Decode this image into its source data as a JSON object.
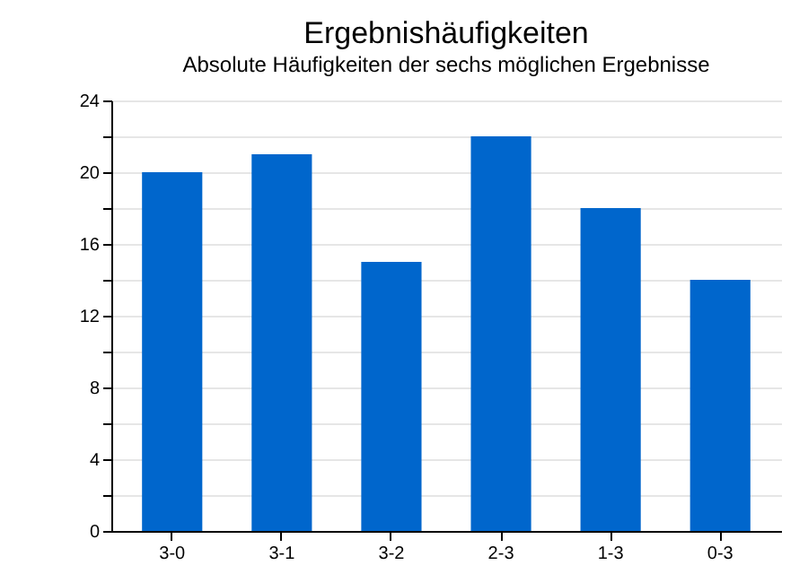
{
  "chart_data": {
    "type": "bar",
    "title": "Ergebnishäufigkeiten",
    "subtitle": "Absolute Häufigkeiten der sechs möglichen Ergebnisse",
    "categories": [
      "3-0",
      "3-1",
      "3-2",
      "2-3",
      "1-3",
      "0-3"
    ],
    "values": [
      20,
      21,
      15,
      22,
      18,
      14
    ],
    "color": "#0066cc",
    "ylim": [
      0,
      24
    ],
    "yticks": [
      0,
      {
        "value": 2,
        "label": null
      },
      4,
      {
        "value": 6,
        "label": null
      },
      8,
      {
        "value": 10,
        "label": null
      },
      12,
      {
        "value": 14,
        "label": null
      },
      16,
      {
        "value": 18,
        "label": null
      },
      20,
      {
        "value": 22,
        "label": null
      },
      24
    ],
    "grid": true
  }
}
